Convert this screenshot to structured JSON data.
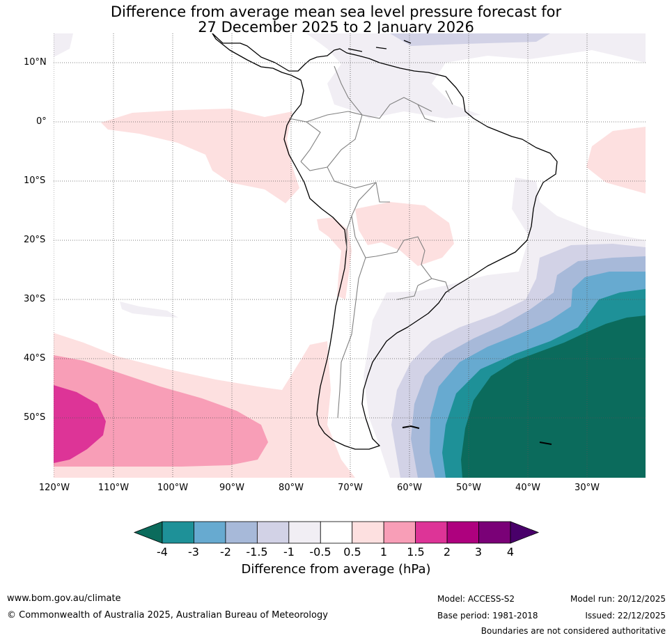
{
  "title": {
    "line1": "Difference from average mean sea level pressure forecast for",
    "line2": "27 December 2025 to 2 January 2026"
  },
  "lat_labels": [
    "10°N",
    "0°",
    "10°S",
    "20°S",
    "30°S",
    "40°S",
    "50°S"
  ],
  "lon_labels": [
    "120°W",
    "110°W",
    "100°W",
    "90°W",
    "80°W",
    "70°W",
    "60°W",
    "50°W",
    "40°W",
    "30°W"
  ],
  "colorbar": {
    "label": "Difference from average (hPa)",
    "ticks": [
      "-4",
      "-3",
      "-2",
      "-1.5",
      "-1",
      "-0.5",
      "0.5",
      "1",
      "1.5",
      "2",
      "3",
      "4"
    ],
    "colors": {
      "below": "#0b6b5c",
      "bins": [
        "#1e9198",
        "#67aad0",
        "#a7b9d9",
        "#d2d2e6",
        "#f1eef4",
        "#ffffff",
        "#fde0e0",
        "#f89eb7",
        "#dd3497",
        "#ae017e",
        "#7a0177"
      ],
      "above": "#49006a"
    }
  },
  "footer": {
    "website": "www.bom.gov.au/climate",
    "copyright": "© Commonwealth of Australia 2025, Australian Bureau of Meteorology",
    "model": "Model: ACCESS-S2",
    "base_period": "Base period: 1981-2018",
    "model_run": "Model run: 20/12/2025",
    "issued": "Issued: 22/12/2025",
    "boundaries_note": "Boundaries are not considered authoritative"
  }
}
